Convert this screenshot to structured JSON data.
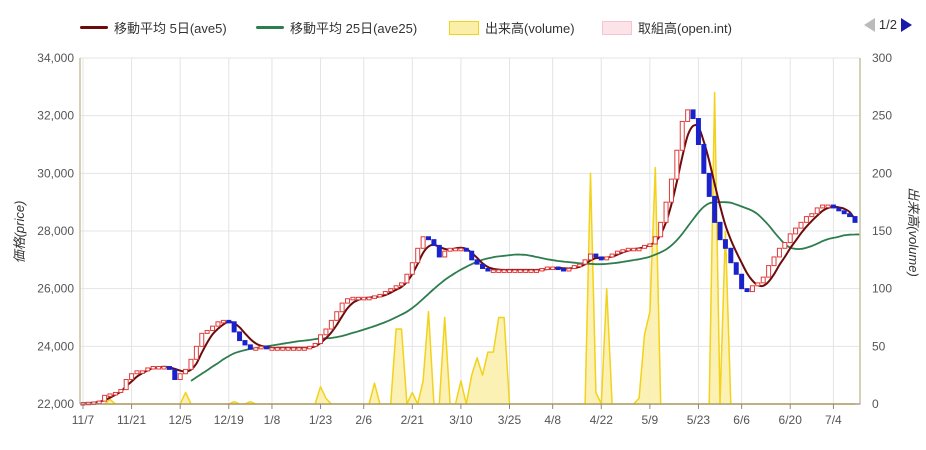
{
  "legend": {
    "ave5": "移動平均 5日(ave5)",
    "ave25": "移動平均 25日(ave25)",
    "volume": "出来高(volume)",
    "openint": "取組高(open.int)"
  },
  "pager": {
    "text": "1/2"
  },
  "chart_data": {
    "type": "candlestick+line+area",
    "y_left_label": "価格(price)",
    "y_right_label": "出来高(volume)",
    "y_left_range": [
      22000,
      34000
    ],
    "y_right_range": [
      0,
      300
    ],
    "y_left_ticks": [
      "22,000",
      "24,000",
      "26,000",
      "28,000",
      "30,000",
      "32,000",
      "34,000"
    ],
    "y_right_ticks": [
      "0",
      "50",
      "100",
      "150",
      "200",
      "250",
      "300"
    ],
    "x_tick_labels": [
      "11/7",
      "11/21",
      "12/5",
      "12/19",
      "1/8",
      "1/23",
      "2/6",
      "2/21",
      "3/10",
      "3/25",
      "4/8",
      "4/22",
      "5/9",
      "5/23",
      "6/6",
      "6/20",
      "7/4"
    ],
    "x_tick_index": [
      0,
      9,
      18,
      27,
      35,
      44,
      52,
      61,
      70,
      79,
      87,
      96,
      105,
      114,
      122,
      131,
      139
    ],
    "grid": true,
    "colors": {
      "ave5": "#6b0b0b",
      "ave25": "#2e7d4f",
      "volume_line": "#f2d21a",
      "volume_fill": "#fbefa8",
      "openint_line": "#f6c4cf",
      "openint_fill": "#fce3e8",
      "candle_up": "#e03a3a",
      "candle_down": "#1a22cc",
      "grid": "#e4e4e4",
      "axis_line": "#c9c0a2"
    },
    "price_close": [
      22050,
      22060,
      22070,
      22100,
      22300,
      22350,
      22400,
      22500,
      22850,
      23050,
      23150,
      23150,
      23250,
      23300,
      23300,
      23300,
      23200,
      22850,
      23050,
      23200,
      23550,
      24000,
      24450,
      24550,
      24700,
      24850,
      24900,
      24850,
      24500,
      24200,
      24050,
      23900,
      23950,
      24000,
      23950,
      23950,
      23950,
      23950,
      23950,
      23950,
      23950,
      23950,
      24000,
      24100,
      24400,
      24600,
      24900,
      25200,
      25500,
      25650,
      25700,
      25700,
      25700,
      25700,
      25750,
      25800,
      25900,
      26000,
      26100,
      26200,
      26500,
      26900,
      27400,
      27800,
      27700,
      27500,
      27100,
      27300,
      27400,
      27400,
      27400,
      27300,
      27000,
      26850,
      26700,
      26650,
      26650,
      26650,
      26650,
      26650,
      26650,
      26650,
      26650,
      26650,
      26650,
      26700,
      26750,
      26750,
      26700,
      26650,
      26700,
      26800,
      26850,
      27000,
      27200,
      27100,
      27000,
      27100,
      27200,
      27300,
      27350,
      27400,
      27400,
      27400,
      27500,
      27550,
      27800,
      28300,
      29000,
      29800,
      30800,
      31800,
      32200,
      31900,
      31000,
      30000,
      29200,
      28300,
      27700,
      27400,
      26900,
      26500,
      26000,
      25900,
      26100,
      26200,
      26400,
      26800,
      27100,
      27400,
      27600,
      27900,
      28100,
      28300,
      28500,
      28600,
      28800,
      28900,
      28900,
      28800,
      28700,
      28600,
      28500,
      28300
    ],
    "ave5": [
      22020,
      22030,
      22050,
      22080,
      22130,
      22220,
      22320,
      22430,
      22620,
      22780,
      22950,
      23070,
      23170,
      23240,
      23270,
      23290,
      23270,
      23220,
      23160,
      23120,
      23190,
      23400,
      23780,
      24130,
      24420,
      24610,
      24760,
      24850,
      24800,
      24660,
      24450,
      24250,
      24100,
      24020,
      23980,
      23950,
      23950,
      23950,
      23950,
      23950,
      23950,
      23950,
      23960,
      24000,
      24120,
      24280,
      24480,
      24740,
      25040,
      25320,
      25510,
      25610,
      25670,
      25690,
      25710,
      25730,
      25780,
      25860,
      25960,
      26060,
      26230,
      26510,
      26860,
      27240,
      27460,
      27520,
      27450,
      27380,
      27350,
      27400,
      27420,
      27380,
      27240,
      27070,
      26880,
      26750,
      26690,
      26660,
      26650,
      26650,
      26650,
      26650,
      26650,
      26650,
      26650,
      26660,
      26680,
      26700,
      26720,
      26710,
      26700,
      26720,
      26760,
      26850,
      26980,
      27060,
      27070,
      27080,
      27110,
      27180,
      27260,
      27320,
      27370,
      27400,
      27440,
      27510,
      27630,
      27880,
      28300,
      28920,
      29700,
      30560,
      31300,
      31640,
      31610,
      31100,
      30430,
      29640,
      28880,
      28200,
      27700,
      27280,
      26900,
      26540,
      26280,
      26120,
      26100,
      26240,
      26500,
      26820,
      27100,
      27400,
      27660,
      27920,
      28150,
      28350,
      28530,
      28700,
      28800,
      28840,
      28820,
      28770,
      28660,
      28400
    ],
    "ave25": [
      null,
      null,
      null,
      null,
      null,
      null,
      null,
      null,
      null,
      null,
      null,
      null,
      null,
      null,
      null,
      null,
      null,
      null,
      null,
      null,
      22800,
      22930,
      23050,
      23170,
      23300,
      23420,
      23550,
      23660,
      23760,
      23820,
      23870,
      23910,
      23940,
      23970,
      24000,
      24030,
      24060,
      24090,
      24120,
      24150,
      24180,
      24200,
      24220,
      24250,
      24270,
      24280,
      24290,
      24320,
      24360,
      24410,
      24470,
      24520,
      24580,
      24640,
      24700,
      24770,
      24840,
      24920,
      25010,
      25100,
      25200,
      25330,
      25480,
      25650,
      25820,
      25990,
      26150,
      26300,
      26430,
      26550,
      26660,
      26760,
      26850,
      26930,
      27000,
      27050,
      27090,
      27120,
      27140,
      27160,
      27180,
      27180,
      27170,
      27140,
      27100,
      27060,
      27020,
      26990,
      26960,
      26940,
      26920,
      26900,
      26880,
      26870,
      26860,
      26850,
      26850,
      26860,
      26880,
      26900,
      26930,
      26960,
      26990,
      27020,
      27060,
      27110,
      27180,
      27260,
      27360,
      27500,
      27680,
      27900,
      28150,
      28400,
      28640,
      28840,
      28960,
      29000,
      29000,
      29000,
      28980,
      28920,
      28850,
      28780,
      28700,
      28580,
      28400,
      28200,
      27970,
      27750,
      27550,
      27420,
      27380,
      27380,
      27420,
      27480,
      27560,
      27650,
      27720,
      27760,
      27800,
      27850,
      27870,
      27880,
      27880
    ],
    "volume": [
      0,
      0,
      0,
      0,
      0,
      4,
      0,
      0,
      0,
      0,
      0,
      0,
      0,
      0,
      0,
      0,
      0,
      0,
      0,
      10,
      0,
      0,
      0,
      0,
      0,
      0,
      0,
      0,
      2,
      0,
      0,
      2,
      0,
      0,
      0,
      0,
      0,
      0,
      0,
      0,
      0,
      0,
      0,
      0,
      15,
      5,
      0,
      0,
      0,
      0,
      0,
      0,
      0,
      0,
      18,
      0,
      0,
      0,
      65,
      65,
      0,
      10,
      0,
      20,
      80,
      0,
      0,
      75,
      0,
      0,
      20,
      0,
      25,
      40,
      25,
      45,
      45,
      75,
      75,
      0,
      0,
      0,
      0,
      0,
      0,
      0,
      0,
      0,
      0,
      0,
      0,
      0,
      0,
      0,
      200,
      10,
      0,
      100,
      0,
      0,
      0,
      0,
      0,
      5,
      60,
      80,
      205,
      0,
      0,
      0,
      0,
      0,
      0,
      0,
      0,
      0,
      0,
      270,
      0,
      150,
      0,
      0,
      0,
      0,
      0,
      0,
      0,
      0,
      0,
      0,
      0,
      0,
      0,
      0,
      0,
      0,
      0,
      0,
      0,
      0,
      0,
      0,
      0,
      0
    ],
    "openint": [
      0,
      0,
      0,
      0,
      0,
      0,
      0,
      0,
      0,
      0,
      0,
      0,
      0,
      0,
      0,
      0,
      0,
      0,
      0,
      0,
      0,
      0,
      0,
      0,
      0,
      0,
      0,
      0,
      0,
      0,
      0,
      0,
      0,
      0,
      0,
      0,
      0,
      0,
      0,
      0,
      0,
      0,
      0,
      0,
      0,
      0,
      0,
      0,
      0,
      0,
      0,
      0,
      0,
      0,
      0,
      0,
      0,
      0,
      0,
      0,
      0,
      0,
      0,
      0,
      0,
      0,
      0,
      0,
      0,
      0,
      0,
      0,
      0,
      0,
      0,
      0,
      0,
      0,
      0,
      0,
      0,
      0,
      0,
      0,
      0,
      0,
      0,
      0,
      0,
      0,
      0,
      0,
      0,
      0,
      0,
      0,
      0,
      0,
      0,
      0,
      0,
      0,
      0,
      0,
      0,
      0,
      0,
      0,
      0,
      0,
      0,
      0,
      0,
      0,
      0,
      0,
      0,
      0,
      0,
      0,
      0,
      0,
      0,
      0,
      0,
      0,
      0,
      0,
      0,
      0,
      0,
      0,
      0,
      0,
      0,
      0,
      0,
      0,
      0,
      0,
      0,
      0,
      0,
      0,
      0
    ]
  }
}
